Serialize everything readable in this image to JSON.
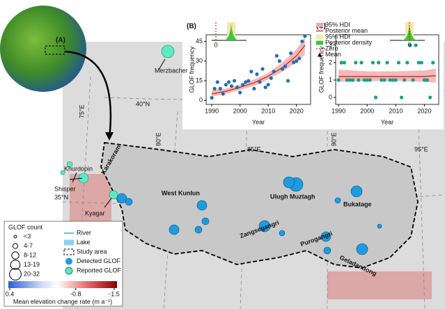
{
  "map": {
    "panel": "(A)",
    "labels": [
      "Merzbacher",
      "40°N",
      "75°E",
      "80°E",
      "85°E",
      "90°E",
      "95°E",
      "35°N",
      "Khurdopin",
      "Shisper",
      "Kyagar",
      "Karakoram",
      "West Kunlun",
      "Ulugh Muztagh",
      "Bukatage",
      "Zangsegangri",
      "Purogangri",
      "Geladandong"
    ]
  },
  "legend": {
    "title": "GLOF count",
    "sizes": [
      "<3",
      "4-7",
      "8-12",
      "13-19",
      "20-32"
    ],
    "items": [
      "River",
      "Lake",
      "Study area",
      "Detected GLOF",
      "Reported GLOF"
    ]
  },
  "colorbar": {
    "ticks": [
      0.4,
      -0.8,
      -1.5
    ],
    "label": "Mean elevation change rate (m a⁻¹)"
  },
  "chart_data": [
    {
      "type": "scatter",
      "title": "(B)",
      "x_label": "Year",
      "y_label": "GLOF frequency",
      "color": "#1f6fb4",
      "x": [
        1990,
        1991,
        1992,
        1993,
        1994,
        1995,
        1996,
        1997,
        1998,
        1999,
        2000,
        2001,
        2002,
        2003,
        2004,
        2005,
        2006,
        2007,
        2008,
        2009,
        2010,
        2011,
        2012,
        2013,
        2014,
        2015,
        2016,
        2017,
        2018,
        2019,
        2020,
        2021,
        2022,
        2023
      ],
      "values": [
        2,
        9,
        14,
        9,
        5,
        12,
        14,
        11,
        15,
        10,
        6,
        12,
        14,
        15,
        22,
        9,
        20,
        14,
        24,
        10,
        12,
        17,
        22,
        34,
        30,
        24,
        26,
        15,
        36,
        29,
        30,
        32,
        45,
        49
      ],
      "mean": {
        "name": "Posterior mean",
        "color": "#c0392b",
        "x": [
          1990,
          1995,
          2000,
          2005,
          2010,
          2015,
          2020,
          2023
        ],
        "values": [
          5,
          7,
          10,
          13.5,
          18.5,
          25,
          34,
          42
        ]
      },
      "hdi": {
        "name": "95% HDI",
        "color": "#f4a6a6",
        "x": [
          1990,
          1995,
          2000,
          2005,
          2010,
          2015,
          2020,
          2023
        ],
        "lower": [
          3,
          5,
          8,
          11,
          16,
          22,
          29,
          35
        ],
        "upper": [
          8,
          9,
          12,
          16,
          21,
          29,
          39,
          48
        ]
      },
      "xlim": [
        1988,
        2025
      ],
      "ylim": [
        -3,
        50
      ],
      "xticks": [
        1990,
        2000,
        2010,
        2020
      ],
      "yticks": [
        0,
        15,
        30,
        45
      ],
      "inset_xticks": [
        0
      ]
    },
    {
      "type": "scatter",
      "title": "(C)",
      "x_label": "Year",
      "y_label": "GLOF frequency",
      "color": "#1a9e8f",
      "x": [
        1990,
        1991,
        1992,
        1993,
        1994,
        1995,
        1996,
        1997,
        1998,
        1999,
        2000,
        2001,
        2002,
        2003,
        2004,
        2005,
        2006,
        2007,
        2008,
        2009,
        2010,
        2011,
        2012,
        2013,
        2014,
        2015,
        2016,
        2017,
        2018,
        2019,
        2020,
        2021,
        2022,
        2023
      ],
      "values": [
        1,
        2,
        2,
        1,
        1,
        1,
        2,
        1,
        2,
        1,
        1,
        1,
        2,
        0,
        2,
        1,
        1,
        2,
        1,
        1,
        1,
        2,
        0,
        1,
        2,
        3,
        1,
        3,
        2,
        2,
        1,
        1,
        0,
        2
      ],
      "mean": {
        "name": "Posterior mean",
        "color": "#c0392b",
        "x": [
          1990,
          2000,
          2010,
          2020,
          2024
        ],
        "values": [
          1.2,
          1.2,
          1.2,
          1.2,
          1.25
        ]
      },
      "hdi": {
        "name": "95% HDI",
        "color": "#f4a6a6",
        "x": [
          1990,
          2000,
          2010,
          2020,
          2024
        ],
        "lower": [
          0.9,
          0.95,
          0.95,
          0.9,
          0.85
        ],
        "upper": [
          1.6,
          1.5,
          1.5,
          1.55,
          1.65
        ]
      },
      "xlim": [
        1989,
        2025
      ],
      "ylim": [
        -0.4,
        3.6
      ],
      "xticks": [
        1990,
        2000,
        2010,
        2020
      ],
      "yticks": [
        0,
        1,
        2,
        3
      ],
      "inset_xticks": [
        0
      ],
      "legend": [
        "95% HDI",
        "Posterior mean",
        "95% HDI",
        "Posterior density",
        "Zero",
        "Mean"
      ]
    }
  ]
}
